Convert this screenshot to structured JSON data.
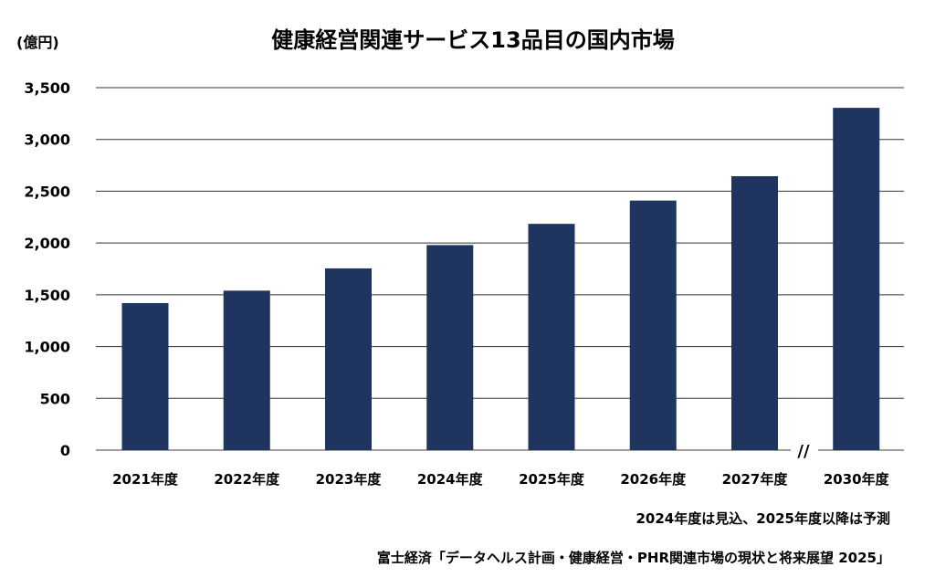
{
  "chart_data": {
    "type": "bar",
    "title": "健康経営関連サービス13品目の国内市場",
    "ylabel": "(億円)",
    "xlabel": "",
    "categories": [
      "2021年度",
      "2022年度",
      "2023年度",
      "2024年度",
      "2025年度",
      "2026年度",
      "2027年度",
      "2030年度"
    ],
    "values": [
      1420,
      1540,
      1755,
      1980,
      2185,
      2410,
      2645,
      3305
    ],
    "ylim": [
      0,
      3500
    ],
    "yticks": [
      0,
      500,
      1000,
      1500,
      2000,
      2500,
      3000,
      3500
    ],
    "ytick_labels": [
      "0",
      "500",
      "1,000",
      "1,500",
      "2,000",
      "2,500",
      "3,000",
      "3,500"
    ],
    "grid": true,
    "bar_color": "#1f3560",
    "axis_break_mark": "//",
    "note": "2024年度は見込、2025年度以降は予測",
    "source": "富士経済「データヘルス計画・健康経営・PHR関連市場の現状と将来展望 2025」"
  }
}
